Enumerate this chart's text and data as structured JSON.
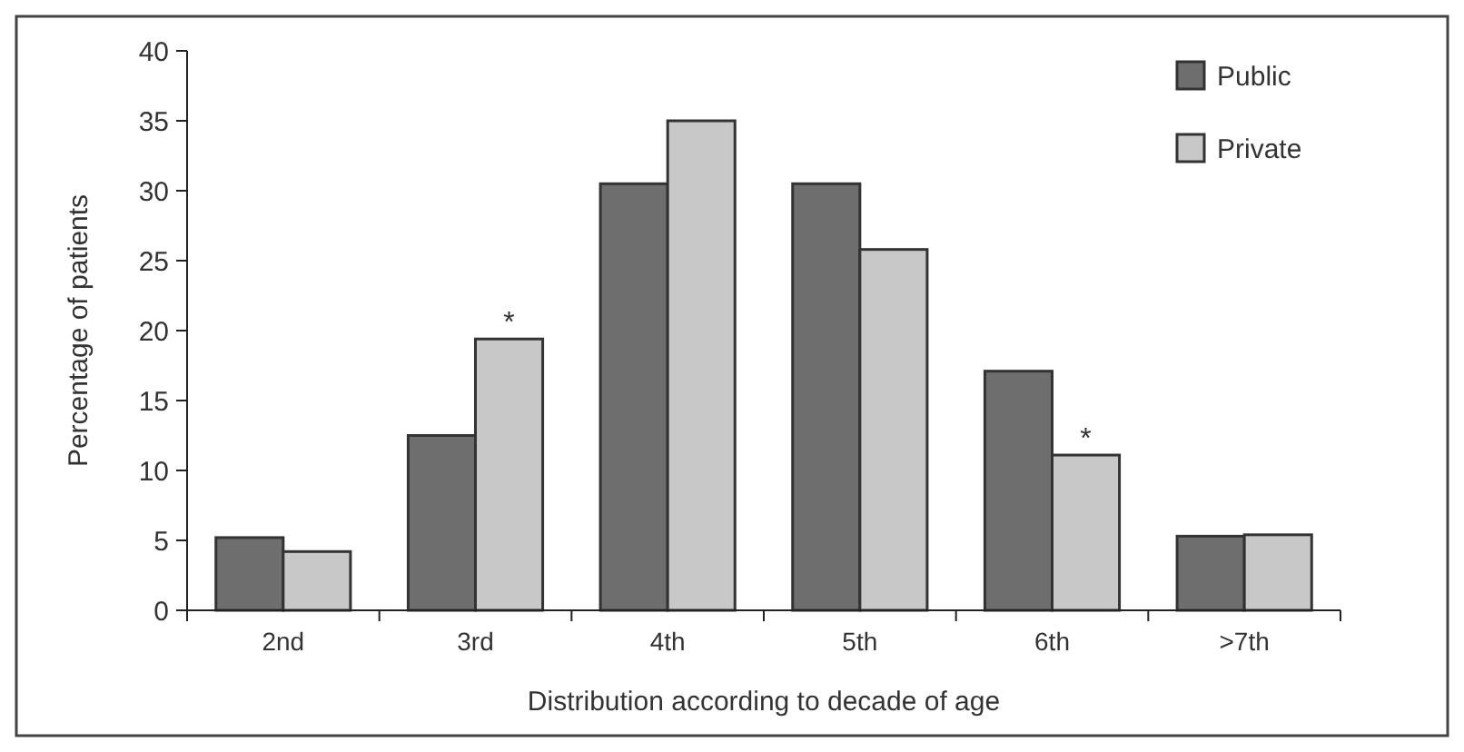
{
  "chart_data": {
    "type": "bar",
    "xlabel": "Distribution according to decade of age",
    "ylabel": "Percentage of patients",
    "categories": [
      "2nd",
      "3rd",
      "4th",
      "5th",
      "6th",
      ">7th"
    ],
    "series": [
      {
        "name": "Public",
        "color": "#6e6e6e",
        "values": [
          5.2,
          12.5,
          30.5,
          30.5,
          17.1,
          5.3
        ]
      },
      {
        "name": "Private",
        "color": "#c8c8c8",
        "values": [
          4.2,
          19.4,
          35,
          25.8,
          11.1,
          5.4
        ]
      }
    ],
    "ylim": [
      0,
      40
    ],
    "yticks": [
      0,
      5,
      10,
      15,
      20,
      25,
      30,
      35,
      40
    ],
    "grid": false,
    "legend": "top right",
    "annotations": [
      {
        "text": "*",
        "x": "3rd",
        "y": 19.4
      },
      {
        "text": "*",
        "x": "6th",
        "y": 11.1
      }
    ]
  }
}
